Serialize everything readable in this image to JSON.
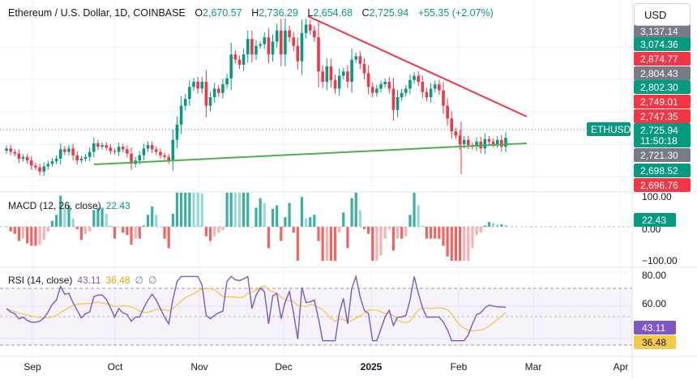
{
  "header": {
    "symbol": "Ethereum / U.S. Dollar, 1D, COINBASE",
    "open_label": "O",
    "open": "2,670.57",
    "high_label": "H",
    "high": "2,736.29",
    "low_label": "L",
    "low": "2,654.68",
    "close_label": "C",
    "close": "2,725.94",
    "change": "+55.35 (+2.07%)"
  },
  "currency_button": "USD",
  "colors": {
    "up": "#089981",
    "down": "#f23645",
    "macd_up": "#26a69a",
    "macd_down": "#ef5350",
    "rsi": "#7e57c2",
    "rsi_ma": "#f7c948",
    "trend_down": "#f23645",
    "trend_up": "#4caf50",
    "gray_tag": "#787b86"
  },
  "chart_data": [
    {
      "type": "candlestick",
      "title": "Ethereum / U.S. Dollar, 1D, COINBASE",
      "ylim": [
        2620,
        3180
      ],
      "x_ticks": [
        "Sep",
        "Oct",
        "Nov",
        "Dec",
        "2025",
        "Feb",
        "Mar",
        "Apr"
      ],
      "close_path": [
        2600,
        2560,
        2540,
        2480,
        2500,
        2460,
        2400,
        2380,
        2330,
        2390,
        2420,
        2450,
        2480,
        2590,
        2560,
        2600,
        2520,
        2460,
        2480,
        2500,
        2560,
        2660,
        2620,
        2640,
        2610,
        2570,
        2560,
        2620,
        2590,
        2540,
        2420,
        2460,
        2520,
        2600,
        2640,
        2590,
        2560,
        2520,
        2500,
        2460,
        2700,
        2880,
        3100,
        3180,
        3320,
        3380,
        3300,
        3380,
        3100,
        3200,
        3300,
        3250,
        3350,
        3420,
        3700,
        3640,
        3580,
        3700,
        3880,
        3700,
        3800,
        3820,
        3900,
        3700,
        3850,
        3980,
        3700,
        3980,
        3900,
        3800,
        3620,
        3950,
        4050,
        3980,
        3900,
        3500,
        3380,
        3560,
        3400,
        3300,
        3450,
        3500,
        3380,
        3640,
        3680,
        3590,
        3480,
        3320,
        3250,
        3300,
        3350,
        3380,
        3300,
        3050,
        3200,
        3250,
        3300,
        3400,
        3450,
        3380,
        3260,
        3200,
        3300,
        3350,
        3280,
        3100,
        2950,
        2800,
        2750,
        2650,
        2700,
        2640,
        2620,
        2680,
        2600,
        2710,
        2680,
        2650,
        2700,
        2620,
        2725
      ],
      "tags": [
        {
          "value": "3,137.14",
          "bg": "#787b86"
        },
        {
          "value": "3,074.36",
          "bg": "#089981"
        },
        {
          "value": "2,874.77",
          "bg": "#f23645"
        },
        {
          "value": "2,804.43",
          "bg": "#787b86"
        },
        {
          "value": "2,802.30",
          "bg": "#089981"
        },
        {
          "value": "2,749.01",
          "bg": "#f23645"
        },
        {
          "value": "2,747.35",
          "bg": "#f23645"
        },
        {
          "value": "2,725.94",
          "bg": "#089981"
        },
        {
          "value": "11:50:18",
          "bg": "#089981"
        },
        {
          "value": "2,721.30",
          "bg": "#787b86"
        },
        {
          "value": "2,698.52",
          "bg": "#089981"
        },
        {
          "value": "2,696.76",
          "bg": "#f23645"
        }
      ],
      "last_price_label": "ETHUSD"
    },
    {
      "type": "bar",
      "title": "MACD (12, 26, close)",
      "value": "22.43",
      "ylim": [
        -100,
        100
      ],
      "y_ticks": [
        "100.00",
        "0.00",
        "−100.00"
      ]
    },
    {
      "type": "line",
      "title": "RSI (14, close)",
      "rsi": "43.11",
      "rsi_ma": "36.48",
      "ylim": [
        20,
        80
      ],
      "y_ticks": [
        "80.00",
        "60.00"
      ],
      "y_tags": [
        "43.11",
        "36.48"
      ]
    }
  ]
}
